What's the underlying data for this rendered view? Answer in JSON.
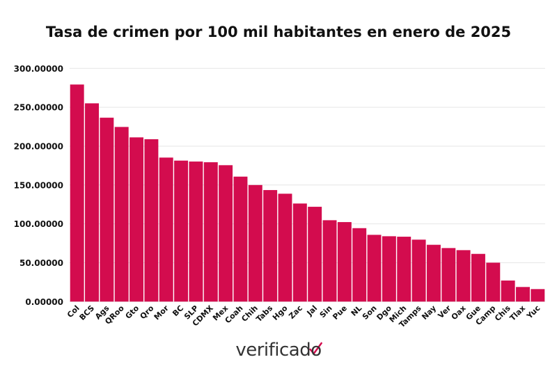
{
  "chart_data": {
    "type": "bar",
    "title": "Tasa de crimen por 100 mil habitantes en enero de 2025",
    "xlabel": "",
    "ylabel": "",
    "ylim": [
      0,
      300
    ],
    "yticks": [
      0,
      50,
      100,
      150,
      200,
      250,
      300
    ],
    "ytick_labels": [
      "0.00000",
      "50.00000",
      "100.00000",
      "150.00000",
      "200.00000",
      "250.00000",
      "300.00000"
    ],
    "grid": true,
    "bar_color": "#d30c4e",
    "categories": [
      "Col",
      "BCS",
      "Ags",
      "QRoo",
      "Gto",
      "Qro",
      "Mor",
      "BC",
      "SLP",
      "CDMX",
      "Mex",
      "Coah",
      "Chih",
      "Tabs",
      "Hgo",
      "Zac",
      "Jal",
      "Sin",
      "Pue",
      "NL",
      "Son",
      "Dgo",
      "Mich",
      "Tamps",
      "Nay",
      "Ver",
      "Oax",
      "Gue",
      "Camp",
      "Chis",
      "Tlax",
      "Yuc"
    ],
    "values": [
      279.3,
      255.1,
      236.6,
      224.7,
      211.3,
      208.9,
      185.3,
      181.4,
      180.2,
      179.3,
      175.5,
      160.8,
      150.0,
      143.5,
      138.8,
      126.2,
      122.0,
      104.7,
      102.3,
      94.5,
      85.9,
      84.1,
      83.5,
      79.7,
      73.1,
      68.9,
      66.2,
      61.4,
      50.1,
      27.1,
      18.8,
      16.1
    ]
  },
  "logo": {
    "text": "verificado",
    "icon": "check-mark-icon",
    "accent": "#d30c4e"
  }
}
